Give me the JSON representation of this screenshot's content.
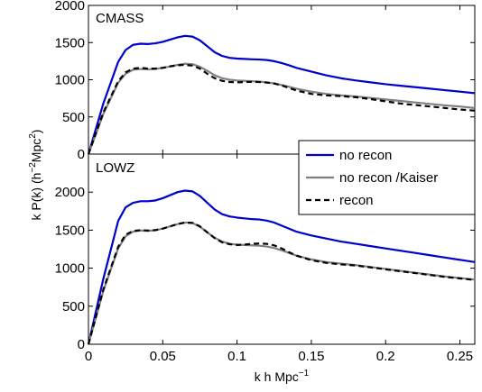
{
  "chart_data": [
    {
      "type": "line",
      "panel_label": "CMASS",
      "ylim": [
        0,
        2000
      ],
      "xlim": [
        0,
        0.26
      ],
      "yticks": [
        "0",
        "500",
        "1000",
        "1500",
        "2000"
      ],
      "x": [
        0,
        0.01,
        0.02,
        0.025,
        0.03,
        0.035,
        0.04,
        0.045,
        0.05,
        0.055,
        0.06,
        0.065,
        0.07,
        0.075,
        0.08,
        0.085,
        0.09,
        0.095,
        0.1,
        0.105,
        0.11,
        0.115,
        0.12,
        0.125,
        0.13,
        0.135,
        0.14,
        0.15,
        0.16,
        0.17,
        0.18,
        0.19,
        0.2,
        0.21,
        0.22,
        0.23,
        0.24,
        0.25,
        0.26
      ],
      "series": [
        {
          "name": "no recon",
          "color": "#0000cc",
          "style": "solid",
          "values": [
            0,
            680,
            1240,
            1400,
            1470,
            1485,
            1480,
            1490,
            1510,
            1540,
            1570,
            1590,
            1580,
            1530,
            1450,
            1370,
            1320,
            1295,
            1285,
            1280,
            1275,
            1272,
            1265,
            1250,
            1225,
            1195,
            1160,
            1110,
            1060,
            1020,
            990,
            965,
            940,
            920,
            900,
            880,
            860,
            840,
            820
          ]
        },
        {
          "name": "no recon /Kaiser",
          "color": "#808080",
          "style": "solid",
          "values": [
            0,
            540,
            960,
            1080,
            1135,
            1145,
            1140,
            1145,
            1160,
            1180,
            1200,
            1215,
            1210,
            1175,
            1120,
            1060,
            1020,
            1000,
            990,
            985,
            980,
            975,
            965,
            950,
            930,
            905,
            880,
            840,
            810,
            790,
            775,
            755,
            735,
            715,
            695,
            675,
            655,
            640,
            620
          ]
        },
        {
          "name": "recon",
          "color": "#000000",
          "style": "dashed",
          "values": [
            0,
            560,
            980,
            1100,
            1150,
            1160,
            1150,
            1150,
            1160,
            1180,
            1195,
            1200,
            1190,
            1150,
            1080,
            1020,
            985,
            970,
            965,
            968,
            972,
            970,
            962,
            950,
            925,
            890,
            855,
            810,
            790,
            780,
            765,
            740,
            710,
            680,
            660,
            640,
            620,
            600,
            585
          ]
        }
      ]
    },
    {
      "type": "line",
      "panel_label": "LOWZ",
      "ylim": [
        0,
        2500
      ],
      "xlim": [
        0,
        0.26
      ],
      "yticks": [
        "0",
        "500",
        "1000",
        "1500",
        "2000"
      ],
      "x": [
        0,
        0.01,
        0.02,
        0.025,
        0.03,
        0.035,
        0.04,
        0.045,
        0.05,
        0.055,
        0.06,
        0.065,
        0.07,
        0.075,
        0.08,
        0.085,
        0.09,
        0.095,
        0.1,
        0.105,
        0.11,
        0.115,
        0.12,
        0.125,
        0.13,
        0.135,
        0.14,
        0.15,
        0.16,
        0.17,
        0.18,
        0.19,
        0.2,
        0.21,
        0.22,
        0.23,
        0.24,
        0.25,
        0.26
      ],
      "series": [
        {
          "name": "no recon",
          "color": "#0000cc",
          "style": "solid",
          "values": [
            0,
            860,
            1620,
            1800,
            1860,
            1880,
            1880,
            1890,
            1920,
            1960,
            2000,
            2020,
            2010,
            1950,
            1860,
            1770,
            1710,
            1680,
            1665,
            1655,
            1645,
            1640,
            1625,
            1600,
            1560,
            1520,
            1480,
            1430,
            1390,
            1350,
            1320,
            1290,
            1260,
            1230,
            1200,
            1170,
            1140,
            1110,
            1080
          ]
        },
        {
          "name": "no recon /Kaiser",
          "color": "#808080",
          "style": "solid",
          "values": [
            0,
            700,
            1260,
            1420,
            1480,
            1495,
            1490,
            1500,
            1520,
            1550,
            1580,
            1600,
            1595,
            1545,
            1470,
            1400,
            1350,
            1320,
            1310,
            1305,
            1300,
            1295,
            1285,
            1265,
            1235,
            1200,
            1165,
            1115,
            1080,
            1060,
            1040,
            1015,
            990,
            965,
            940,
            915,
            890,
            870,
            850
          ]
        },
        {
          "name": "recon",
          "color": "#000000",
          "style": "dashed",
          "values": [
            0,
            720,
            1280,
            1440,
            1490,
            1500,
            1495,
            1500,
            1520,
            1550,
            1580,
            1600,
            1595,
            1550,
            1470,
            1395,
            1340,
            1315,
            1305,
            1310,
            1320,
            1325,
            1320,
            1300,
            1260,
            1210,
            1165,
            1105,
            1070,
            1050,
            1035,
            1010,
            985,
            960,
            935,
            910,
            885,
            865,
            845
          ]
        }
      ]
    }
  ],
  "xticks": [
    "0",
    "0.05",
    "0.1",
    "0.15",
    "0.2",
    "0.25"
  ],
  "xtick_values": [
    0,
    0.05,
    0.1,
    0.15,
    0.2,
    0.25
  ],
  "xlabel": "k h Mpc",
  "xlabel_sup": "−1",
  "ylabel": "k P(k) (h",
  "ylabel_sup1": "−2",
  "ylabel_mid": "Mpc",
  "ylabel_sup2": "2",
  "ylabel_end": ")",
  "legend": {
    "placement": "right, between panels",
    "entries": [
      {
        "label": "no recon",
        "color": "#0000cc",
        "style": "solid"
      },
      {
        "label": "no recon /Kaiser",
        "color": "#808080",
        "style": "solid"
      },
      {
        "label": "recon",
        "color": "#000000",
        "style": "dashed"
      }
    ]
  }
}
